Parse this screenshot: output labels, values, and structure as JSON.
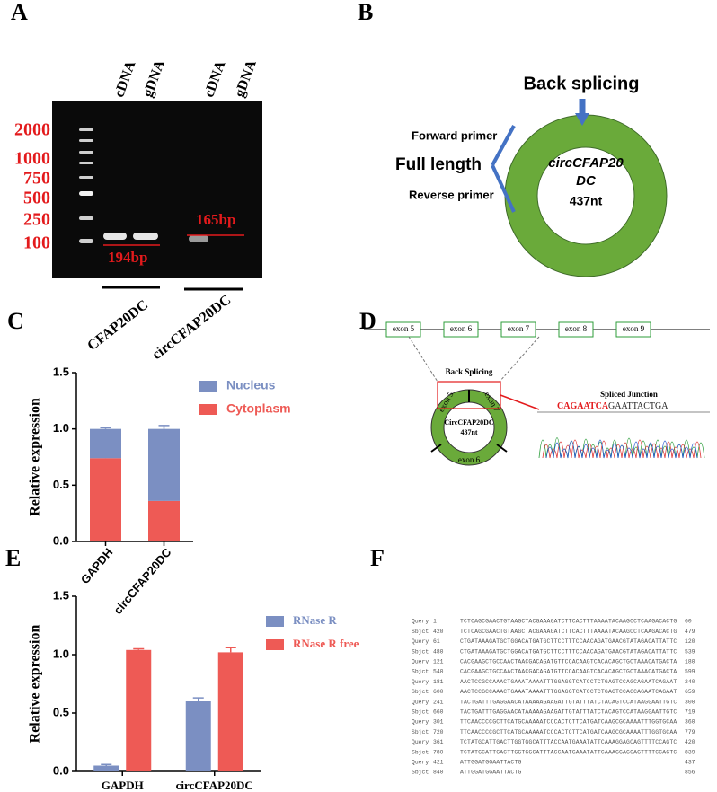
{
  "panel_labels": [
    "A",
    "B",
    "C",
    "D",
    "E",
    "F"
  ],
  "gel": {
    "marker_sizes": [
      "2000",
      "1000",
      "750",
      "500",
      "250",
      "100"
    ],
    "lane_labels": [
      "cDNA",
      "gDNA",
      "cDNA",
      "gDNA"
    ],
    "band_labels": [
      "194bp",
      "165bp"
    ],
    "groups": [
      "CFAP20DC",
      "circCFAP20DC"
    ]
  },
  "circle": {
    "title": "Back splicing",
    "forward": "Forward primer",
    "full": "Full length",
    "reverse": "Reverse primer",
    "name_line1": "circCFAP20",
    "name_line2": "DC",
    "length": "437nt"
  },
  "structure": {
    "exons": [
      "exon 5",
      "exon 6",
      "exon 7",
      "exon 8",
      "exon 9"
    ],
    "back_splicing": "Back Splicing",
    "circ_name": "CircCFAP20DC",
    "circ_length": "437nt",
    "ring_exons": [
      "exon 5",
      "exon 6",
      "exon 7"
    ],
    "junction_title": "Spliced Junction",
    "seq_left": "CAGAATCA",
    "seq_g": "G",
    "seq_a": "A",
    "seq_right": "ATTACTGA"
  },
  "alignment": {
    "rows": [
      [
        "Query",
        1,
        "TCTCAGCGAACTGTAAGCTACGAAAGATCTTCACTTTAAAATACAAGCCTCAAGACACTG",
        60
      ],
      [
        "Sbjct",
        420,
        "TCTCAGCGAACTGTAAGCTACGAAAGATCTTCACTTTAAAATACAAGCCTCAAGACACTG",
        479
      ],
      [
        "Query",
        61,
        "CTGATAAAGATGCTGGACATGATGCTTCCTTTCCAACAGATGAACGTATAGACATTATTC",
        120
      ],
      [
        "Sbjct",
        480,
        "CTGATAAAGATGCTGGACATGATGCTTCCTTTCCAACAGATGAACGTATAGACATTATTC",
        539
      ],
      [
        "Query",
        121,
        "CACGAAGCTGCCAACTAACGACAGATGTTCCACAAGTCACACAGCTGCTAAACATGACTA",
        180
      ],
      [
        "Sbjct",
        540,
        "CACGAAGCTGCCAACTAACGACAGATGTTCCACAAGTCACACAGCTGCTAAACATGACTA",
        599
      ],
      [
        "Query",
        181,
        "AACTCCGCCAAACTGAAATAAAATTTGGAGGTCATCCTCTGAGTCCAGCAGAATCAGAAT",
        240
      ],
      [
        "Sbjct",
        600,
        "AACTCCGCCAAACTGAAATAAAATTTGGAGGTCATCCTCTGAGTCCAGCAGAATCAGAAT",
        659
      ],
      [
        "Query",
        241,
        "TACTGATTTGAGGAACATAAAAAGAAGATTGTATTTATCTACAGTCCATAAGGAATTGTC",
        300
      ],
      [
        "Sbjct",
        660,
        "TACTGATTTGAGGAACATAAAAAGAAGATTGTATTTATCTACAGTCCATAAGGAATTGTC",
        719
      ],
      [
        "Query",
        301,
        "TTCAACCCCGCTTCATGCAAAAATCCCACTCTTCATGATCAAGCGCAAAATTTGGTGCAA",
        360
      ],
      [
        "Sbjct",
        720,
        "TTCAACCCCGCTTCATGCAAAAATCCCACTCTTCATGATCAAGCGCAAAATTTGGTGCAA",
        779
      ],
      [
        "Query",
        361,
        "TCTATGCATTGACTTGGTGGCATTTACCAATGAAATATTCAAAGGAGCAGTTTTCCAGTC",
        420
      ],
      [
        "Sbjct",
        780,
        "TCTATGCATTGACTTGGTGGCATTTACCAATGAAATATTCAAAGGAGCAGTTTTCCAGTC",
        839
      ],
      [
        "Query",
        421,
        "ATTGGATGGAATTACTG",
        437
      ],
      [
        "Sbjct",
        840,
        "ATTGGATGGAATTACTG",
        856
      ]
    ]
  },
  "chart_data": [
    {
      "type": "bar",
      "stacked": true,
      "y_label": "Relative expression",
      "categories": [
        "GAPDH",
        "circCFAP20DC"
      ],
      "series": [
        {
          "name": "Nucleus",
          "color": "#7b8fc2",
          "values": [
            0.26,
            0.64
          ],
          "errors": [
            0.01,
            0.03
          ]
        },
        {
          "name": "Cytoplasm",
          "color": "#ee5a55",
          "values": [
            0.74,
            0.36
          ],
          "errors": [
            0.01,
            0.02
          ]
        }
      ],
      "ylim": [
        0,
        1.5
      ],
      "yticks": [
        {
          "value": 0,
          "label": "0.0"
        },
        0.5,
        {
          "value": 1,
          "label": "1.0"
        },
        1.5
      ]
    },
    {
      "type": "bar",
      "stacked": false,
      "y_label": "Relative expression",
      "categories": [
        "GAPDH",
        "circCFAP20DC"
      ],
      "series": [
        {
          "name": "RNase R",
          "color": "#7b8fc2",
          "values": [
            0.05,
            0.6
          ],
          "errors": [
            0.01,
            0.03
          ]
        },
        {
          "name": "RNase R free",
          "color": "#ee5a55",
          "values": [
            1.04,
            1.02
          ],
          "errors": [
            0.01,
            0.04
          ]
        }
      ],
      "ylim": [
        0,
        1.5
      ],
      "yticks": [
        {
          "value": 0,
          "label": "0.0"
        },
        0.5,
        {
          "value": 1,
          "label": "1.0"
        },
        1.5
      ]
    }
  ]
}
